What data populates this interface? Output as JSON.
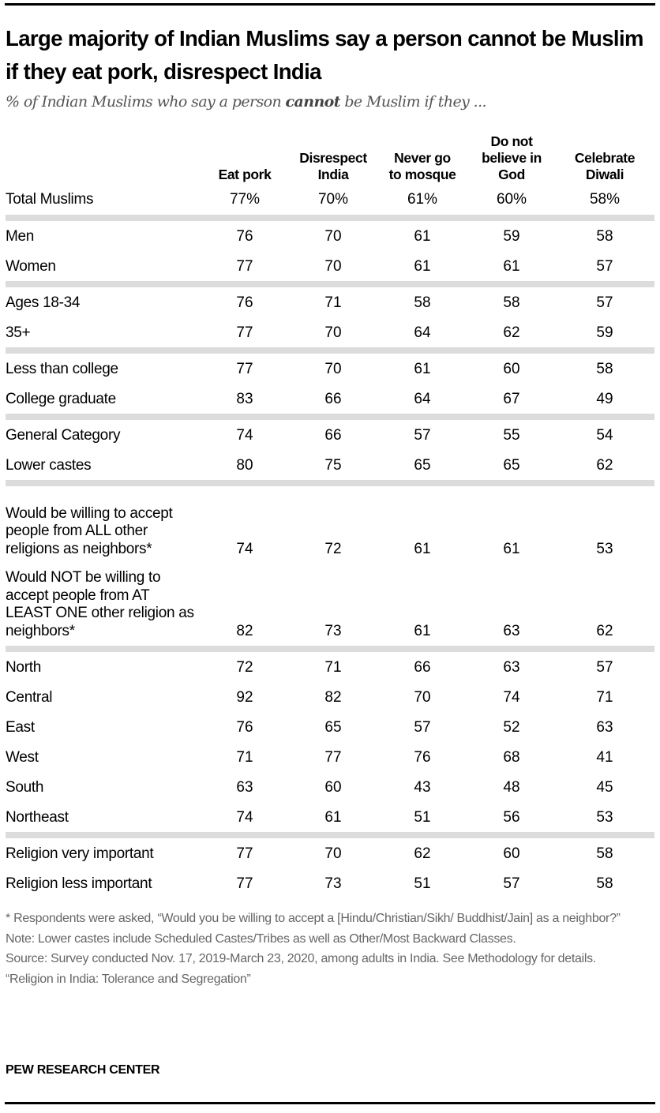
{
  "title": "Large majority of Indian Muslims say a person cannot be Muslim if they eat pork, disrespect India",
  "subtitle": {
    "before": "% of Indian Muslims who say a person ",
    "bold": "cannot",
    "after": " be Muslim if they ..."
  },
  "chart_data": {
    "type": "table",
    "columns": [
      "Eat pork",
      "Disrespect India",
      "Never go to mosque",
      "Do not believe in God",
      "Celebrate Diwali"
    ],
    "groups": [
      [
        {
          "label": "Total Muslims",
          "values": [
            "77%",
            "70%",
            "61%",
            "60%",
            "58%"
          ]
        }
      ],
      [
        {
          "label": "Men",
          "values": [
            "76",
            "70",
            "61",
            "59",
            "58"
          ]
        },
        {
          "label": "Women",
          "values": [
            "77",
            "70",
            "61",
            "61",
            "57"
          ]
        }
      ],
      [
        {
          "label": "Ages 18-34",
          "values": [
            "76",
            "71",
            "58",
            "58",
            "57"
          ]
        },
        {
          "label": "35+",
          "values": [
            "77",
            "70",
            "64",
            "62",
            "59"
          ]
        }
      ],
      [
        {
          "label": "Less than college",
          "values": [
            "77",
            "70",
            "61",
            "60",
            "58"
          ]
        },
        {
          "label": "College graduate",
          "values": [
            "83",
            "66",
            "64",
            "67",
            "49"
          ]
        }
      ],
      [
        {
          "label": "General Category",
          "values": [
            "74",
            "66",
            "57",
            "55",
            "54"
          ]
        },
        {
          "label": "Lower castes",
          "values": [
            "80",
            "75",
            "65",
            "65",
            "62"
          ]
        }
      ],
      [
        {
          "label": "Would be willing to accept people from ALL other religions as neighbors*",
          "values": [
            "74",
            "72",
            "61",
            "61",
            "53"
          ]
        },
        {
          "label": "Would NOT be willing to accept people from AT LEAST ONE other religion as neighbors*",
          "values": [
            "82",
            "73",
            "61",
            "63",
            "62"
          ]
        }
      ],
      [
        {
          "label": "North",
          "values": [
            "72",
            "71",
            "66",
            "63",
            "57"
          ]
        },
        {
          "label": "Central",
          "values": [
            "92",
            "82",
            "70",
            "74",
            "71"
          ]
        },
        {
          "label": "East",
          "values": [
            "76",
            "65",
            "57",
            "52",
            "63"
          ]
        },
        {
          "label": "West",
          "values": [
            "71",
            "77",
            "76",
            "68",
            "41"
          ]
        },
        {
          "label": "South",
          "values": [
            "63",
            "60",
            "43",
            "48",
            "45"
          ]
        },
        {
          "label": "Northeast",
          "values": [
            "74",
            "61",
            "51",
            "56",
            "53"
          ]
        }
      ],
      [
        {
          "label": "Religion very important",
          "values": [
            "77",
            "70",
            "62",
            "60",
            "58"
          ]
        },
        {
          "label": "Religion less important",
          "values": [
            "77",
            "73",
            "51",
            "57",
            "58"
          ]
        }
      ]
    ]
  },
  "notes": [
    "* Respondents were asked, “Would you be willing to accept a [Hindu/Christian/Sikh/ Buddhist/Jain] as a neighbor?”",
    "Note: Lower castes include Scheduled Castes/Tribes as well as Other/Most Backward Classes.",
    "Source: Survey conducted Nov. 17, 2019-March 23, 2020, among adults in India. See Methodology for details.",
    "“Religion in India: Tolerance and Segregation”"
  ],
  "brand": "PEW RESEARCH CENTER",
  "colors": {
    "separator": "#dcdcdc",
    "notes": "#666666"
  }
}
